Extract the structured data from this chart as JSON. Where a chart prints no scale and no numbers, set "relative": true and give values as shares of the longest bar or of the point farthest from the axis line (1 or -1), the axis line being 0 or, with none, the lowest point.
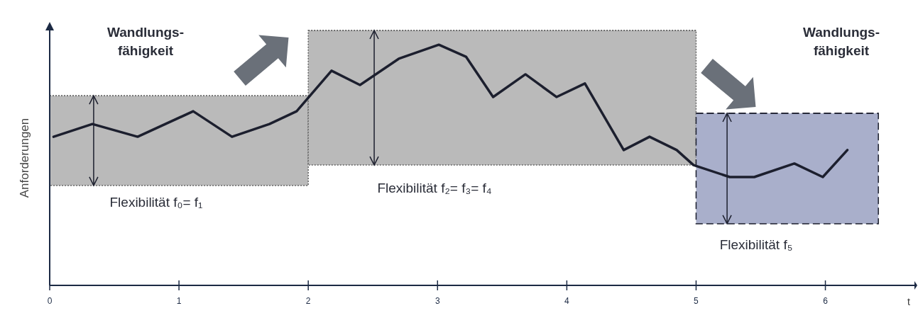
{
  "chart_data": {
    "type": "line",
    "relative": true,
    "xlabel": "t",
    "ylabel": "Anforderungen",
    "xlim": [
      0,
      6.7
    ],
    "xticks": [
      0,
      1,
      2,
      3,
      4,
      5,
      6
    ],
    "grid": false,
    "legend": false,
    "series": [
      {
        "type": "line",
        "color": "#666666",
        "x": [
          0,
          2
        ],
        "values": [
          0.744,
          0.744
        ],
        "lower": [
          0.392,
          0.392
        ],
        "upper": [
          0.744,
          0.744
        ],
        "line_style": "dotted"
      },
      {
        "type": "line",
        "color": "#666666",
        "x": [
          2,
          5
        ],
        "values": [
          1,
          1
        ],
        "lower": [
          0.472,
          0.472
        ],
        "upper": [
          1,
          1
        ],
        "line_style": "dotted"
      },
      {
        "type": "line",
        "color": "#1c1f2e",
        "x": [
          5,
          6.41
        ],
        "values": [
          0.675,
          0.675
        ],
        "lower": [
          0.242,
          0.242
        ],
        "upper": [
          0.675,
          0.675
        ],
        "line_style": "dashed"
      },
      {
        "color": "#1c1f2e",
        "x": [
          0.03,
          0.33,
          0.68,
          1.11,
          1.41,
          1.7,
          1.91,
          2.18,
          2.4,
          2.7,
          3.01,
          3.22,
          3.43,
          3.68,
          3.92,
          4.14,
          4.44,
          4.64,
          4.85,
          4.98,
          5.26,
          5.45,
          5.76,
          5.98,
          6.17
        ],
        "values": [
          0.583,
          0.633,
          0.583,
          0.683,
          0.583,
          0.633,
          0.683,
          0.842,
          0.786,
          0.889,
          0.944,
          0.897,
          0.739,
          0.828,
          0.739,
          0.792,
          0.531,
          0.583,
          0.531,
          0.472,
          0.425,
          0.425,
          0.478,
          0.425,
          0.531
        ],
        "line_style": "solid"
      }
    ],
    "annotations": [
      "Wandlungs-\nfähigkeit",
      "Wandlungs-\nfähigkeit",
      "Flexibilität f₀= f₁",
      "Flexibilität f₂= f₃= f₄",
      "Flexibilität f₅"
    ]
  }
}
